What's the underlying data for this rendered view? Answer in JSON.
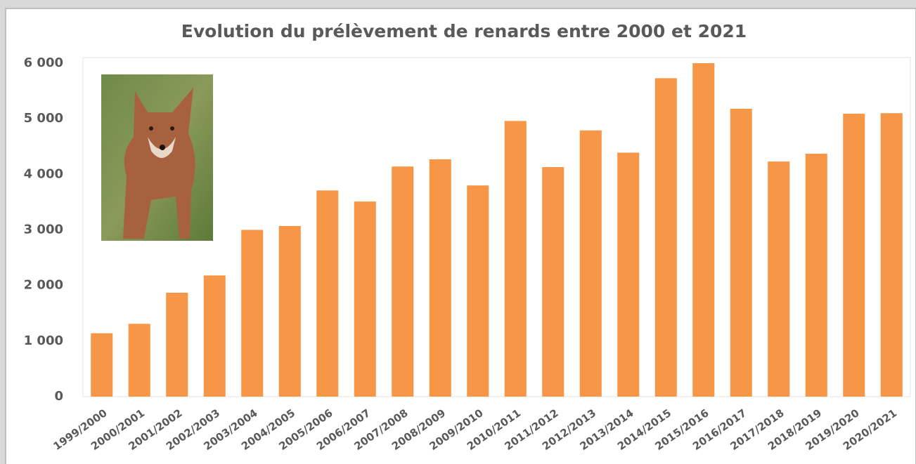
{
  "chart_data": {
    "type": "bar",
    "title": "Evolution du prélèvement de renards entre 2000 et 2021",
    "categories": [
      "1999/2000",
      "2000/2001",
      "2001/2002",
      "2002/2003",
      "2003/2004",
      "2004/2005",
      "2005/2006",
      "2006/2007",
      "2007/2008",
      "2008/2009",
      "2009/2010",
      "2010/2011",
      "2011/2012",
      "2012/2013",
      "2013/2014",
      "2014/2015",
      "2015/2016",
      "2016/2017",
      "2017/2018",
      "2018/2019",
      "2019/2020",
      "2020/2021"
    ],
    "values": [
      1140,
      1310,
      1870,
      2180,
      3000,
      3070,
      3710,
      3510,
      4140,
      4270,
      3800,
      4960,
      4130,
      4790,
      4390,
      5730,
      6000,
      5180,
      4230,
      4370,
      5090,
      5100
    ],
    "color": "#f79646",
    "ylim": [
      0,
      6000
    ],
    "yticks": [
      0,
      {
        "value": 1000,
        "label": "1 000"
      },
      {
        "value": 2000,
        "label": "2 000"
      },
      {
        "value": 3000,
        "label": "3 000"
      },
      {
        "value": 4000,
        "label": "4 000"
      },
      {
        "value": 5000,
        "label": "5 000"
      },
      {
        "value": 6000,
        "label": "6 000"
      }
    ],
    "grid": false
  }
}
